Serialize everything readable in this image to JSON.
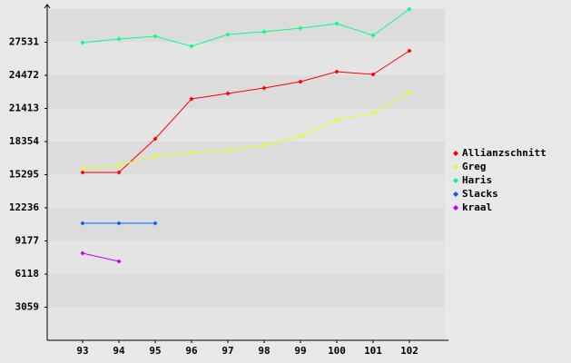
{
  "chart_data": {
    "type": "line",
    "categories": [
      "93",
      "94",
      "95",
      "96",
      "97",
      "98",
      "99",
      "100",
      "101",
      "102"
    ],
    "series": [
      {
        "name": "Allianzschnitt",
        "color": "#ff0000",
        "values": [
          15505,
          15505,
          18605,
          22293,
          22796,
          23298,
          23885,
          24807,
          24556,
          26735
        ]
      },
      {
        "name": "Greg",
        "color": "#e0ff20",
        "values": [
          15840,
          16175,
          17013,
          17348,
          17516,
          18018,
          18856,
          20365,
          20951,
          22880
        ]
      },
      {
        "name": "Haris",
        "color": "#00ff80",
        "values": [
          27489,
          27824,
          28076,
          27154,
          28243,
          28495,
          28830,
          29249,
          28160,
          30590
        ]
      },
      {
        "name": "Slacks",
        "color": "#0060ff",
        "values": [
          10811,
          10811,
          10811,
          null,
          null,
          null,
          null,
          null,
          null,
          null
        ]
      },
      {
        "name": "kraal",
        "color": "#c000ff",
        "values": [
          8046,
          7291,
          null,
          null,
          null,
          null,
          null,
          null,
          null,
          null
        ]
      }
    ],
    "ylim": [
      0,
      30590
    ],
    "yticks": [
      3059,
      6118,
      9177,
      12236,
      15295,
      18354,
      21413,
      24472,
      27531
    ],
    "grid": true,
    "legend": "right"
  }
}
